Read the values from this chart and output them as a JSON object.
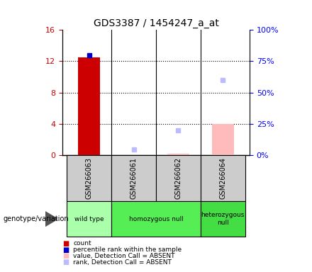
{
  "title": "GDS3387 / 1454247_a_at",
  "samples": [
    "GSM266063",
    "GSM266061",
    "GSM266062",
    "GSM266064"
  ],
  "genotype_groups": [
    {
      "label": "wild type",
      "samples_idx": [
        0
      ],
      "color": "#aaffaa"
    },
    {
      "label": "homozygous null",
      "samples_idx": [
        1,
        2
      ],
      "color": "#55ee55"
    },
    {
      "label": "heterozygous\nnull",
      "samples_idx": [
        3
      ],
      "color": "#44dd44"
    }
  ],
  "count_values": [
    12.5,
    null,
    null,
    null
  ],
  "percentile_rank_pct": [
    80,
    null,
    null,
    null
  ],
  "absent_value_pct": [
    null,
    null,
    1.0,
    25.0
  ],
  "absent_rank_pct": [
    null,
    4.5,
    20.0,
    60.0
  ],
  "ylim_left": [
    0,
    16
  ],
  "ylim_right": [
    0,
    100
  ],
  "yticks_left": [
    0,
    4,
    8,
    12,
    16
  ],
  "yticks_right": [
    0,
    25,
    50,
    75,
    100
  ],
  "ytick_labels_right": [
    "0%",
    "25%",
    "50%",
    "75%",
    "100%"
  ],
  "count_color": "#cc0000",
  "percentile_rank_color": "#0000cc",
  "absent_value_color": "#ffbbbb",
  "absent_rank_color": "#bbbbff",
  "sample_box_color": "#cccccc",
  "legend_items": [
    {
      "color": "#cc0000",
      "label": "count"
    },
    {
      "color": "#0000cc",
      "label": "percentile rank within the sample"
    },
    {
      "color": "#ffbbbb",
      "label": "value, Detection Call = ABSENT"
    },
    {
      "color": "#bbbbff",
      "label": "rank, Detection Call = ABSENT"
    }
  ]
}
